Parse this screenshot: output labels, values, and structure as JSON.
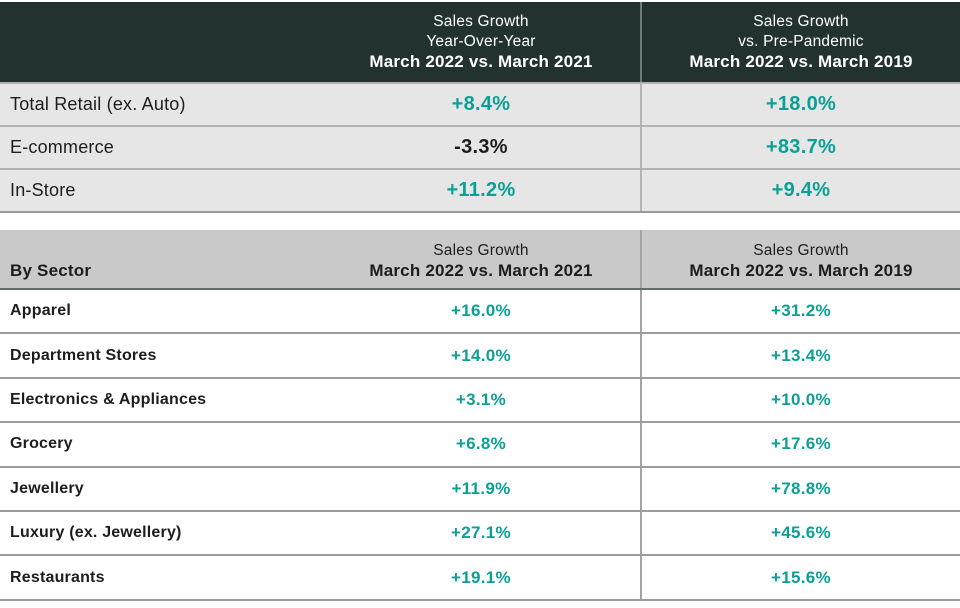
{
  "colors": {
    "header_dark_bg": "#213230",
    "teal_accent": "#0aa096",
    "table2_header_bg": "#c9c9c9",
    "row_gray_bg": "#e6e6e6",
    "text_black": "#1d1d1b"
  },
  "chart_data": [
    {
      "type": "table",
      "name": "total-retail-growth",
      "header": {
        "col1": "",
        "col2_lines": [
          "Sales Growth",
          "Year-Over-Year",
          "March 2022 vs. March 2021"
        ],
        "col3_lines": [
          "Sales Growth",
          "vs. Pre-Pandemic",
          "March 2022 vs. March 2019"
        ]
      },
      "rows": [
        {
          "label": "Total Retail (ex. Auto)",
          "yoy": "+8.4%",
          "yoy_value": 8.4,
          "yoy_style": "teal",
          "pre": "+18.0%",
          "pre_value": 18.0,
          "pre_style": "teal"
        },
        {
          "label": "E-commerce",
          "yoy": "-3.3%",
          "yoy_value": -3.3,
          "yoy_style": "black",
          "pre": "+83.7%",
          "pre_value": 83.7,
          "pre_style": "teal"
        },
        {
          "label": "In-Store",
          "yoy": "+11.2%",
          "yoy_value": 11.2,
          "yoy_style": "teal",
          "pre": "+9.4%",
          "pre_value": 9.4,
          "pre_style": "teal"
        }
      ]
    },
    {
      "type": "table",
      "name": "by-sector-growth",
      "header": {
        "col1": "By Sector",
        "col2_lines": [
          "Sales Growth",
          "March 2022 vs. March 2021"
        ],
        "col3_lines": [
          "Sales Growth",
          "March 2022 vs. March 2019"
        ]
      },
      "rows": [
        {
          "label": "Apparel",
          "yoy": "+16.0%",
          "yoy_value": 16.0,
          "yoy_style": "teal",
          "pre": "+31.2%",
          "pre_value": 31.2,
          "pre_style": "teal"
        },
        {
          "label": "Department Stores",
          "yoy": "+14.0%",
          "yoy_value": 14.0,
          "yoy_style": "teal",
          "pre": "+13.4%",
          "pre_value": 13.4,
          "pre_style": "teal"
        },
        {
          "label": "Electronics & Appliances",
          "yoy": "+3.1%",
          "yoy_value": 3.1,
          "yoy_style": "teal",
          "pre": "+10.0%",
          "pre_value": 10.0,
          "pre_style": "teal"
        },
        {
          "label": "Grocery",
          "yoy": "+6.8%",
          "yoy_value": 6.8,
          "yoy_style": "teal",
          "pre": "+17.6%",
          "pre_value": 17.6,
          "pre_style": "teal"
        },
        {
          "label": "Jewellery",
          "yoy": "+11.9%",
          "yoy_value": 11.9,
          "yoy_style": "teal",
          "pre": "+78.8%",
          "pre_value": 78.8,
          "pre_style": "teal"
        },
        {
          "label": "Luxury (ex. Jewellery)",
          "yoy": "+27.1%",
          "yoy_value": 27.1,
          "yoy_style": "teal",
          "pre": "+45.6%",
          "pre_value": 45.6,
          "pre_style": "teal"
        },
        {
          "label": "Restaurants",
          "yoy": "+19.1%",
          "yoy_value": 19.1,
          "yoy_style": "teal",
          "pre": "+15.6%",
          "pre_value": 15.6,
          "pre_style": "teal"
        }
      ]
    }
  ]
}
